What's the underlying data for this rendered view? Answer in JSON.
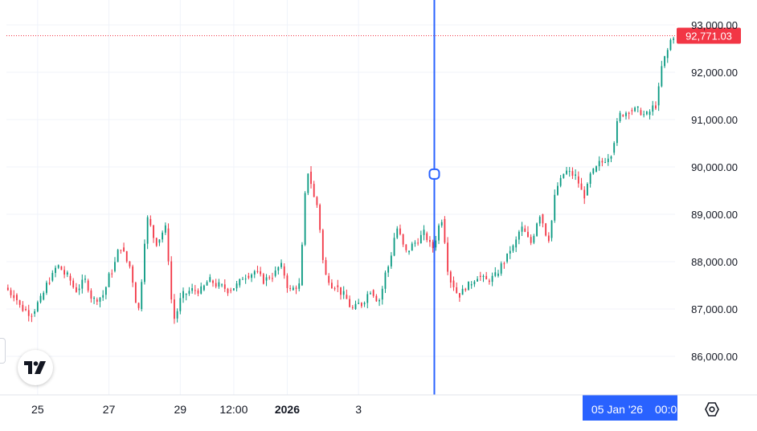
{
  "chart_data": {
    "type": "candlestick",
    "price_scale": {
      "ticks": [
        "93,000.00",
        "92,000.00",
        "91,000.00",
        "90,000.00",
        "89,000.00",
        "88,000.00",
        "87,000.00",
        "86,000.00"
      ],
      "tick_values": [
        93000,
        92000,
        91000,
        90000,
        89000,
        88000,
        87000,
        86000
      ],
      "range": [
        85200,
        93500
      ]
    },
    "time_scale": {
      "labels": [
        {
          "text": "25",
          "index": 3,
          "bold": false
        },
        {
          "text": "27",
          "index": 11,
          "bold": false
        },
        {
          "text": "29",
          "index": 19,
          "bold": false
        },
        {
          "text": "12:00",
          "index": 25,
          "bold": false
        },
        {
          "text": "2026",
          "index": 31,
          "bold": true
        },
        {
          "text": "3",
          "index": 39,
          "bold": false
        }
      ],
      "crosshair_label": "05 Jan '26",
      "crosshair_label_next": "00:0"
    },
    "last_price": {
      "value": 92771.03,
      "label": "92,771.03",
      "color": "#f23645"
    },
    "crosshair": {
      "index": 47.5,
      "price": 89850
    },
    "colors": {
      "up": "#089981",
      "down": "#f23645",
      "crosshair": "#2962ff",
      "grid": "#f0f3fa"
    },
    "closes": [
      87300,
      87000,
      86900,
      87200,
      87600,
      87900,
      87700,
      87400,
      87600,
      87200,
      87300,
      87800,
      88300,
      87900,
      87000,
      88900,
      88400,
      88700,
      86800,
      87300,
      87400,
      87400,
      87600,
      87500,
      87400,
      87500,
      87700,
      87800,
      87600,
      87700,
      87900,
      87400,
      87500,
      89900,
      89200,
      87700,
      87500,
      87300,
      87000,
      87100,
      87400,
      87200,
      87900,
      88700,
      88200,
      88400,
      88600,
      88300,
      88900,
      87600,
      87300,
      87500,
      87700,
      87600,
      87700,
      88000,
      88300,
      88700,
      88400,
      89000,
      88500,
      89600,
      89900,
      89800,
      89400,
      89900,
      90100,
      90300,
      91100,
      91200,
      91200,
      91100,
      91300,
      92300,
      92771
    ]
  },
  "labels": {
    "logo": "tradingview-logo"
  }
}
